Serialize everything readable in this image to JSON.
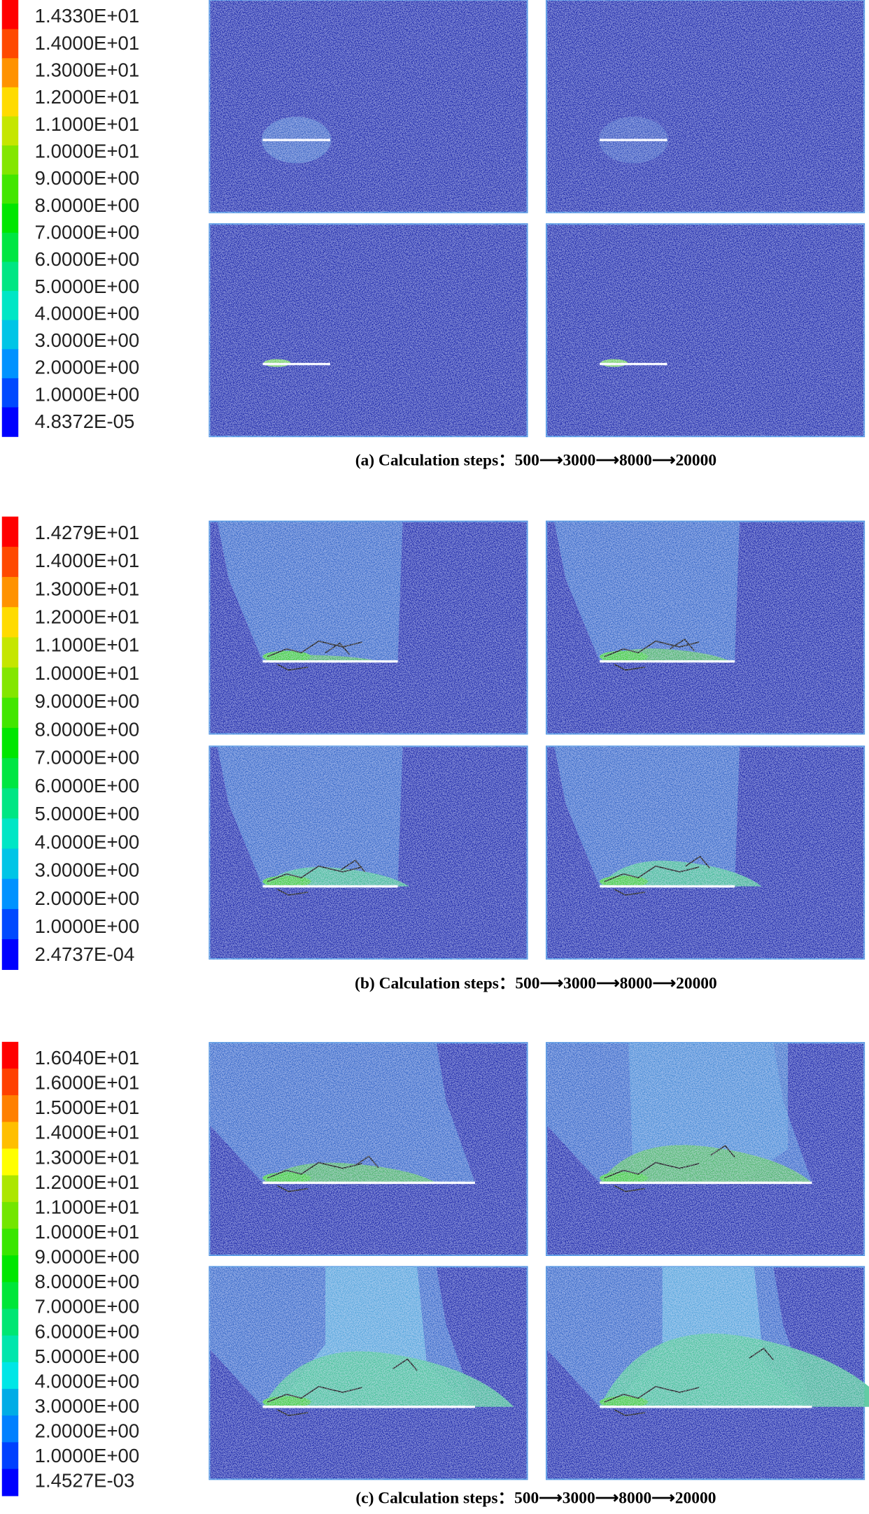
{
  "panels": [
    {
      "legend": [
        "1.4330E+01",
        "1.4000E+01",
        "1.3000E+01",
        "1.2000E+01",
        "1.1000E+01",
        "1.0000E+01",
        "9.0000E+00",
        "8.0000E+00",
        "7.0000E+00",
        "6.0000E+00",
        "5.0000E+00",
        "4.0000E+00",
        "3.0000E+00",
        "2.0000E+00",
        "1.0000E+00",
        "4.8372E-05"
      ],
      "caption": "(a) Calculation steps：500⟶3000⟶8000⟶20000"
    },
    {
      "legend": [
        "1.4279E+01",
        "1.4000E+01",
        "1.3000E+01",
        "1.2000E+01",
        "1.1000E+01",
        "1.0000E+01",
        "9.0000E+00",
        "8.0000E+00",
        "7.0000E+00",
        "6.0000E+00",
        "5.0000E+00",
        "4.0000E+00",
        "3.0000E+00",
        "2.0000E+00",
        "1.0000E+00",
        "2.4737E-04"
      ],
      "caption": "(b) Calculation steps：500⟶3000⟶8000⟶20000"
    },
    {
      "legend": [
        "1.6040E+01",
        "1.6000E+01",
        "1.5000E+01",
        "1.4000E+01",
        "1.3000E+01",
        "1.2000E+01",
        "1.1000E+01",
        "1.0000E+01",
        "9.0000E+00",
        "8.0000E+00",
        "7.0000E+00",
        "6.0000E+00",
        "5.0000E+00",
        "4.0000E+00",
        "3.0000E+00",
        "2.0000E+00",
        "1.0000E+00",
        "1.4527E-03"
      ],
      "caption": "(c) Calculation steps：500⟶3000⟶8000⟶20000"
    }
  ]
}
